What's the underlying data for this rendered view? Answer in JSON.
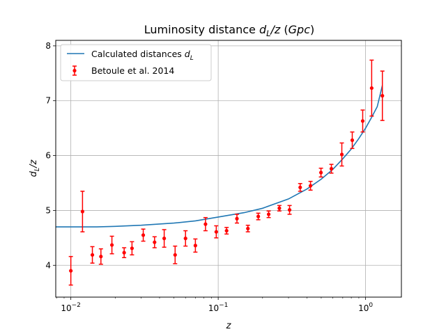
{
  "chart_data": {
    "type": "scatter",
    "title": "Luminosity distance d_L/z (Gpc)",
    "xlabel": "z",
    "ylabel": "d_L/z",
    "xscale": "log",
    "xlim": [
      0.0079,
      1.75
    ],
    "ylim": [
      3.42,
      8.1
    ],
    "xticks": [
      {
        "value": 0.01,
        "label": "10^-2"
      },
      {
        "value": 0.1,
        "label": "10^-1"
      },
      {
        "value": 1,
        "label": "10^0"
      }
    ],
    "yticks": [
      4,
      5,
      6,
      7,
      8
    ],
    "grid": true,
    "legend_position": "top-left",
    "series": [
      {
        "name": "Calculated distances d_L",
        "kind": "line",
        "color": "#1f77b4",
        "x": [
          0.0079,
          0.01,
          0.015,
          0.02,
          0.03,
          0.05,
          0.07,
          0.1,
          0.15,
          0.2,
          0.3,
          0.4,
          0.5,
          0.6,
          0.7,
          0.8,
          0.9,
          1.0,
          1.1,
          1.2,
          1.3
        ],
        "y": [
          4.7,
          4.7,
          4.7,
          4.71,
          4.73,
          4.77,
          4.81,
          4.88,
          4.96,
          5.04,
          5.21,
          5.39,
          5.57,
          5.75,
          5.94,
          6.12,
          6.31,
          6.5,
          6.7,
          6.89,
          7.28
        ]
      },
      {
        "name": "Betoule et al. 2014",
        "kind": "errorbar",
        "color": "#ff0000",
        "x": [
          0.01,
          0.012,
          0.014,
          0.016,
          0.019,
          0.023,
          0.026,
          0.031,
          0.037,
          0.043,
          0.051,
          0.06,
          0.07,
          0.082,
          0.097,
          0.114,
          0.134,
          0.159,
          0.187,
          0.22,
          0.26,
          0.305,
          0.36,
          0.423,
          0.498,
          0.586,
          0.69,
          0.812,
          0.956,
          1.1,
          1.3
        ],
        "y": [
          3.9,
          4.98,
          4.19,
          4.16,
          4.37,
          4.23,
          4.31,
          4.55,
          4.42,
          4.49,
          4.19,
          4.49,
          4.36,
          4.75,
          4.61,
          4.63,
          4.85,
          4.67,
          4.89,
          4.93,
          5.04,
          5.01,
          5.42,
          5.45,
          5.69,
          5.76,
          6.02,
          6.28,
          6.63,
          7.23,
          7.09
        ],
        "yerr": [
          0.26,
          0.37,
          0.15,
          0.14,
          0.16,
          0.09,
          0.12,
          0.11,
          0.1,
          0.16,
          0.16,
          0.14,
          0.12,
          0.12,
          0.11,
          0.06,
          0.08,
          0.06,
          0.06,
          0.06,
          0.05,
          0.08,
          0.07,
          0.08,
          0.08,
          0.08,
          0.21,
          0.15,
          0.2,
          0.51,
          0.45
        ]
      }
    ]
  }
}
